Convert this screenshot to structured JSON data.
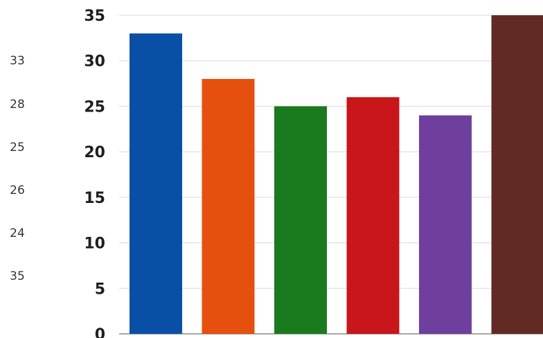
{
  "chart_data": {
    "type": "bar",
    "categories": [
      "",
      "",
      "",
      "",
      "",
      ""
    ],
    "values": [
      33,
      28,
      25,
      26,
      24,
      35
    ],
    "colors": [
      "#0a4fa6",
      "#e5500e",
      "#1a7a1e",
      "#c8161a",
      "#6f3f9e",
      "#622a25"
    ],
    "ylim": [
      0,
      35
    ],
    "yticks": [
      "0",
      "5",
      "10",
      "15",
      "20",
      "25",
      "30",
      "35"
    ],
    "grid": true,
    "legend": "none"
  },
  "side_values": [
    "33",
    "28",
    "25",
    "26",
    "24",
    "35"
  ]
}
